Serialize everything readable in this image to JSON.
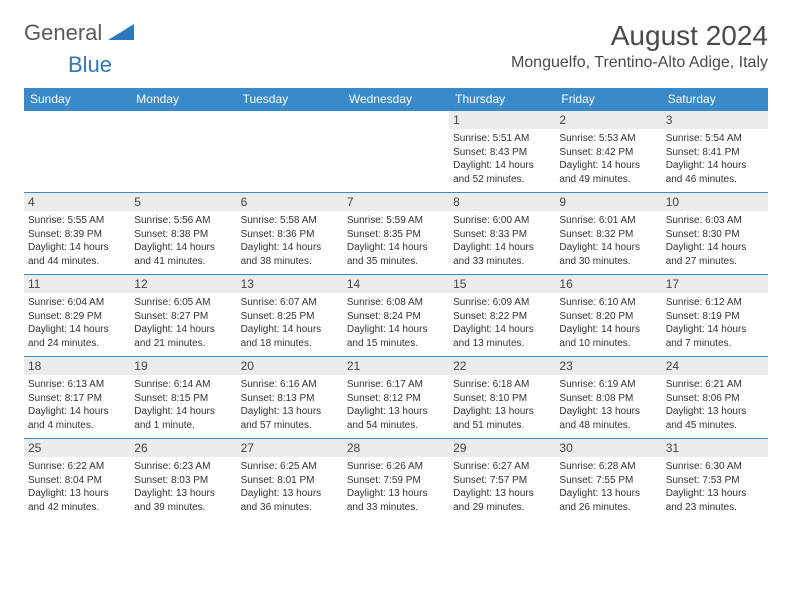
{
  "brand": {
    "part1": "General",
    "part2": "Blue"
  },
  "title": "August 2024",
  "location": "Monguelfo, Trentino-Alto Adige, Italy",
  "colors": {
    "header_bg": "#3a8ac9",
    "header_text": "#ffffff",
    "cell_border": "#3a8ac9",
    "daynum_bg": "#ececec",
    "text": "#333333",
    "brand_gray": "#5a5a5a",
    "brand_blue": "#2f78b7"
  },
  "weekdays": [
    "Sunday",
    "Monday",
    "Tuesday",
    "Wednesday",
    "Thursday",
    "Friday",
    "Saturday"
  ],
  "weeks": [
    [
      null,
      null,
      null,
      null,
      {
        "n": "1",
        "sr": "Sunrise: 5:51 AM",
        "ss": "Sunset: 8:43 PM",
        "dl": "Daylight: 14 hours and 52 minutes."
      },
      {
        "n": "2",
        "sr": "Sunrise: 5:53 AM",
        "ss": "Sunset: 8:42 PM",
        "dl": "Daylight: 14 hours and 49 minutes."
      },
      {
        "n": "3",
        "sr": "Sunrise: 5:54 AM",
        "ss": "Sunset: 8:41 PM",
        "dl": "Daylight: 14 hours and 46 minutes."
      }
    ],
    [
      {
        "n": "4",
        "sr": "Sunrise: 5:55 AM",
        "ss": "Sunset: 8:39 PM",
        "dl": "Daylight: 14 hours and 44 minutes."
      },
      {
        "n": "5",
        "sr": "Sunrise: 5:56 AM",
        "ss": "Sunset: 8:38 PM",
        "dl": "Daylight: 14 hours and 41 minutes."
      },
      {
        "n": "6",
        "sr": "Sunrise: 5:58 AM",
        "ss": "Sunset: 8:36 PM",
        "dl": "Daylight: 14 hours and 38 minutes."
      },
      {
        "n": "7",
        "sr": "Sunrise: 5:59 AM",
        "ss": "Sunset: 8:35 PM",
        "dl": "Daylight: 14 hours and 35 minutes."
      },
      {
        "n": "8",
        "sr": "Sunrise: 6:00 AM",
        "ss": "Sunset: 8:33 PM",
        "dl": "Daylight: 14 hours and 33 minutes."
      },
      {
        "n": "9",
        "sr": "Sunrise: 6:01 AM",
        "ss": "Sunset: 8:32 PM",
        "dl": "Daylight: 14 hours and 30 minutes."
      },
      {
        "n": "10",
        "sr": "Sunrise: 6:03 AM",
        "ss": "Sunset: 8:30 PM",
        "dl": "Daylight: 14 hours and 27 minutes."
      }
    ],
    [
      {
        "n": "11",
        "sr": "Sunrise: 6:04 AM",
        "ss": "Sunset: 8:29 PM",
        "dl": "Daylight: 14 hours and 24 minutes."
      },
      {
        "n": "12",
        "sr": "Sunrise: 6:05 AM",
        "ss": "Sunset: 8:27 PM",
        "dl": "Daylight: 14 hours and 21 minutes."
      },
      {
        "n": "13",
        "sr": "Sunrise: 6:07 AM",
        "ss": "Sunset: 8:25 PM",
        "dl": "Daylight: 14 hours and 18 minutes."
      },
      {
        "n": "14",
        "sr": "Sunrise: 6:08 AM",
        "ss": "Sunset: 8:24 PM",
        "dl": "Daylight: 14 hours and 15 minutes."
      },
      {
        "n": "15",
        "sr": "Sunrise: 6:09 AM",
        "ss": "Sunset: 8:22 PM",
        "dl": "Daylight: 14 hours and 13 minutes."
      },
      {
        "n": "16",
        "sr": "Sunrise: 6:10 AM",
        "ss": "Sunset: 8:20 PM",
        "dl": "Daylight: 14 hours and 10 minutes."
      },
      {
        "n": "17",
        "sr": "Sunrise: 6:12 AM",
        "ss": "Sunset: 8:19 PM",
        "dl": "Daylight: 14 hours and 7 minutes."
      }
    ],
    [
      {
        "n": "18",
        "sr": "Sunrise: 6:13 AM",
        "ss": "Sunset: 8:17 PM",
        "dl": "Daylight: 14 hours and 4 minutes."
      },
      {
        "n": "19",
        "sr": "Sunrise: 6:14 AM",
        "ss": "Sunset: 8:15 PM",
        "dl": "Daylight: 14 hours and 1 minute."
      },
      {
        "n": "20",
        "sr": "Sunrise: 6:16 AM",
        "ss": "Sunset: 8:13 PM",
        "dl": "Daylight: 13 hours and 57 minutes."
      },
      {
        "n": "21",
        "sr": "Sunrise: 6:17 AM",
        "ss": "Sunset: 8:12 PM",
        "dl": "Daylight: 13 hours and 54 minutes."
      },
      {
        "n": "22",
        "sr": "Sunrise: 6:18 AM",
        "ss": "Sunset: 8:10 PM",
        "dl": "Daylight: 13 hours and 51 minutes."
      },
      {
        "n": "23",
        "sr": "Sunrise: 6:19 AM",
        "ss": "Sunset: 8:08 PM",
        "dl": "Daylight: 13 hours and 48 minutes."
      },
      {
        "n": "24",
        "sr": "Sunrise: 6:21 AM",
        "ss": "Sunset: 8:06 PM",
        "dl": "Daylight: 13 hours and 45 minutes."
      }
    ],
    [
      {
        "n": "25",
        "sr": "Sunrise: 6:22 AM",
        "ss": "Sunset: 8:04 PM",
        "dl": "Daylight: 13 hours and 42 minutes."
      },
      {
        "n": "26",
        "sr": "Sunrise: 6:23 AM",
        "ss": "Sunset: 8:03 PM",
        "dl": "Daylight: 13 hours and 39 minutes."
      },
      {
        "n": "27",
        "sr": "Sunrise: 6:25 AM",
        "ss": "Sunset: 8:01 PM",
        "dl": "Daylight: 13 hours and 36 minutes."
      },
      {
        "n": "28",
        "sr": "Sunrise: 6:26 AM",
        "ss": "Sunset: 7:59 PM",
        "dl": "Daylight: 13 hours and 33 minutes."
      },
      {
        "n": "29",
        "sr": "Sunrise: 6:27 AM",
        "ss": "Sunset: 7:57 PM",
        "dl": "Daylight: 13 hours and 29 minutes."
      },
      {
        "n": "30",
        "sr": "Sunrise: 6:28 AM",
        "ss": "Sunset: 7:55 PM",
        "dl": "Daylight: 13 hours and 26 minutes."
      },
      {
        "n": "31",
        "sr": "Sunrise: 6:30 AM",
        "ss": "Sunset: 7:53 PM",
        "dl": "Daylight: 13 hours and 23 minutes."
      }
    ]
  ]
}
